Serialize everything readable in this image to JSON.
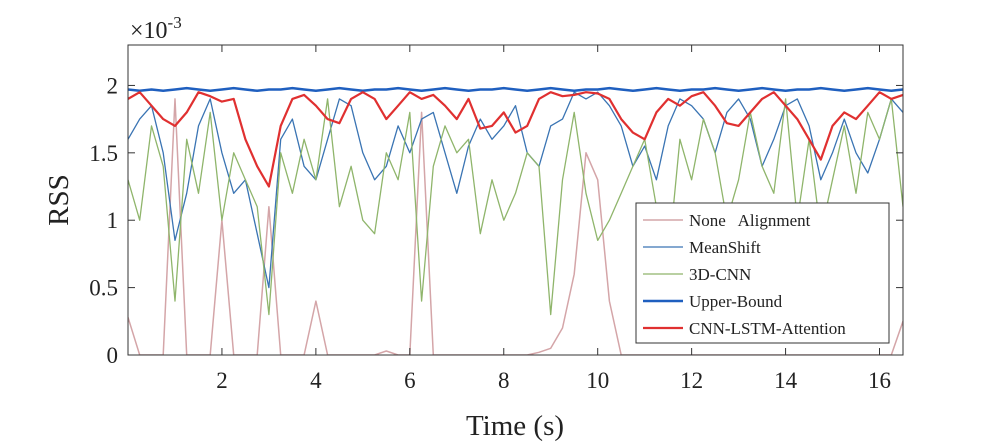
{
  "chart_data": {
    "type": "line",
    "xlabel": "Time (s)",
    "ylabel": "RSS",
    "y_scale_label": {
      "base": "×10",
      "exponent": "-3"
    },
    "xlim": [
      0,
      16.5
    ],
    "ylim": [
      0,
      2.3
    ],
    "xticks": [
      2,
      4,
      6,
      8,
      10,
      12,
      14,
      16
    ],
    "yticks": [
      0,
      0.5,
      1,
      1.5,
      2
    ],
    "legend": "lower right",
    "x": [
      0,
      0.25,
      0.5,
      0.75,
      1,
      1.25,
      1.5,
      1.75,
      2,
      2.25,
      2.5,
      2.75,
      3,
      3.25,
      3.5,
      3.75,
      4,
      4.25,
      4.5,
      4.75,
      5,
      5.25,
      5.5,
      5.75,
      6,
      6.25,
      6.5,
      6.75,
      7,
      7.25,
      7.5,
      7.75,
      8,
      8.25,
      8.5,
      8.75,
      9,
      9.25,
      9.5,
      9.75,
      10,
      10.25,
      10.5,
      10.75,
      11,
      11.25,
      11.5,
      11.75,
      12,
      12.25,
      12.5,
      12.75,
      13,
      13.25,
      13.5,
      13.75,
      14,
      14.25,
      14.5,
      14.75,
      15,
      15.25,
      15.5,
      15.75,
      16,
      16.25,
      16.5
    ],
    "series": [
      {
        "name": "None   Alignment",
        "color": "#d4a5a8",
        "width": 1.5,
        "values": [
          0.28,
          0,
          0,
          0,
          1.9,
          0,
          0,
          0,
          1.0,
          0,
          0,
          0,
          1.1,
          0,
          0,
          0,
          0.4,
          0,
          0,
          0,
          0,
          0,
          0.03,
          0,
          0,
          1.8,
          0,
          0,
          0,
          0,
          0,
          0,
          0,
          0,
          0,
          0.02,
          0.05,
          0.2,
          0.6,
          1.5,
          1.3,
          0.4,
          0,
          0,
          0,
          0,
          0,
          0,
          0,
          0,
          0,
          0,
          0,
          0,
          0,
          0,
          0,
          0,
          0,
          0,
          0,
          0,
          0,
          0,
          0,
          0,
          0.25
        ]
      },
      {
        "name": "MeanShift",
        "color": "#3a74b3",
        "width": 1.3,
        "values": [
          1.6,
          1.75,
          1.85,
          1.5,
          0.85,
          1.2,
          1.7,
          1.9,
          1.5,
          1.2,
          1.3,
          0.9,
          0.5,
          1.6,
          1.75,
          1.4,
          1.3,
          1.6,
          1.9,
          1.85,
          1.5,
          1.3,
          1.4,
          1.7,
          1.5,
          1.75,
          1.8,
          1.5,
          1.2,
          1.55,
          1.75,
          1.6,
          1.7,
          1.85,
          1.5,
          1.4,
          1.7,
          1.75,
          1.95,
          1.9,
          1.95,
          1.85,
          1.7,
          1.4,
          1.55,
          1.3,
          1.7,
          1.9,
          1.85,
          1.75,
          1.5,
          1.8,
          1.9,
          1.75,
          1.4,
          1.6,
          1.85,
          1.9,
          1.7,
          1.3,
          1.5,
          1.75,
          1.5,
          1.35,
          1.6,
          1.9,
          1.8
        ]
      },
      {
        "name": "3D-CNN",
        "color": "#8fb56b",
        "width": 1.3,
        "values": [
          1.3,
          1.0,
          1.7,
          1.4,
          0.4,
          1.6,
          1.2,
          1.8,
          1.0,
          1.5,
          1.3,
          1.1,
          0.3,
          1.5,
          1.2,
          1.6,
          1.3,
          1.9,
          1.1,
          1.4,
          1.0,
          0.9,
          1.5,
          1.3,
          1.8,
          0.4,
          1.4,
          1.7,
          1.5,
          1.6,
          0.9,
          1.3,
          1.0,
          1.2,
          1.5,
          1.4,
          0.3,
          1.3,
          1.8,
          1.2,
          0.85,
          1.0,
          1.2,
          1.4,
          1.6,
          1.1,
          0.7,
          1.6,
          1.3,
          1.75,
          1.5,
          1.0,
          1.3,
          1.8,
          1.4,
          1.2,
          1.9,
          1.0,
          1.6,
          0.9,
          1.3,
          1.7,
          1.2,
          1.8,
          1.6,
          1.9,
          1.1
        ]
      },
      {
        "name": "Upper-Bound",
        "color": "#1f5fbf",
        "width": 2.5,
        "values": [
          1.97,
          1.96,
          1.97,
          1.96,
          1.97,
          1.98,
          1.97,
          1.96,
          1.97,
          1.98,
          1.97,
          1.96,
          1.97,
          1.97,
          1.98,
          1.97,
          1.96,
          1.97,
          1.98,
          1.97,
          1.96,
          1.97,
          1.97,
          1.98,
          1.97,
          1.96,
          1.97,
          1.98,
          1.97,
          1.96,
          1.97,
          1.97,
          1.98,
          1.97,
          1.96,
          1.97,
          1.98,
          1.97,
          1.96,
          1.97,
          1.97,
          1.98,
          1.97,
          1.96,
          1.97,
          1.98,
          1.97,
          1.96,
          1.97,
          1.97,
          1.98,
          1.97,
          1.96,
          1.97,
          1.98,
          1.97,
          1.96,
          1.97,
          1.97,
          1.98,
          1.97,
          1.96,
          1.97,
          1.98,
          1.97,
          1.96,
          1.97
        ]
      },
      {
        "name": "CNN-LSTM-Attention",
        "color": "#e03030",
        "width": 2.2,
        "values": [
          1.9,
          1.95,
          1.85,
          1.75,
          1.7,
          1.8,
          1.95,
          1.92,
          1.88,
          1.9,
          1.6,
          1.4,
          1.25,
          1.7,
          1.9,
          1.93,
          1.85,
          1.75,
          1.72,
          1.9,
          1.95,
          1.9,
          1.75,
          1.85,
          1.95,
          1.9,
          1.93,
          1.85,
          1.75,
          1.9,
          1.68,
          1.7,
          1.8,
          1.65,
          1.7,
          1.9,
          1.95,
          1.92,
          1.93,
          1.95,
          1.94,
          1.9,
          1.75,
          1.65,
          1.6,
          1.8,
          1.9,
          1.85,
          1.92,
          1.95,
          1.85,
          1.72,
          1.7,
          1.8,
          1.9,
          1.95,
          1.85,
          1.75,
          1.6,
          1.45,
          1.7,
          1.8,
          1.75,
          1.85,
          1.95,
          1.9,
          1.93
        ]
      }
    ]
  }
}
